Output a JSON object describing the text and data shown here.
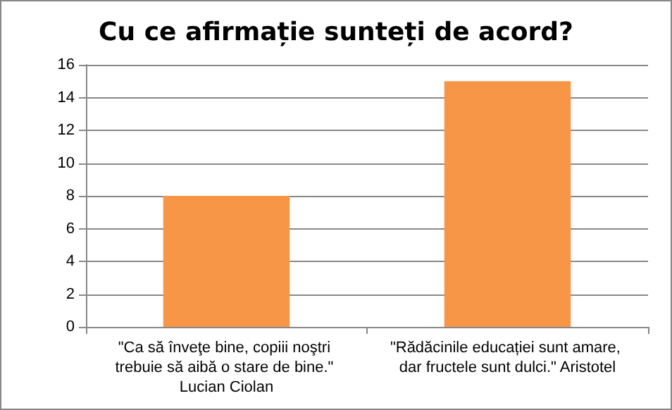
{
  "chart_data": {
    "type": "bar",
    "title": "Cu ce afirmație sunteți de acord?",
    "categories": [
      "\"Ca să înveţe bine, copiii noştri trebuie să aibă o stare de bine.\" Lucian Ciolan",
      "\"Rădăcinile educației sunt amare, dar fructele sunt dulci.\" Aristotel"
    ],
    "values": [
      8,
      15
    ],
    "color": "#f79646",
    "ylim": [
      0,
      16
    ],
    "yticks": [
      0,
      2,
      4,
      6,
      8,
      10,
      12,
      14,
      16
    ],
    "grid": "y"
  }
}
